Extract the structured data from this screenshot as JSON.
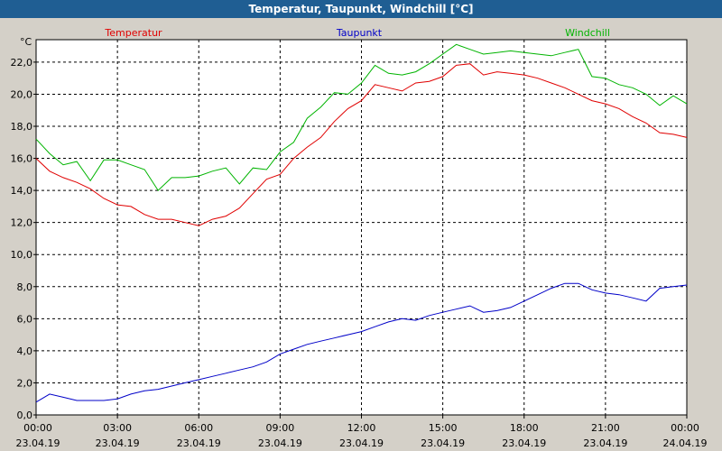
{
  "window": {
    "title": "Temperatur, Taupunkt, Windchill [°C]"
  },
  "chart_data": {
    "type": "line",
    "unit_label": "°C",
    "xlim": [
      "23.04.19 00:00",
      "24.04.19 00:00"
    ],
    "ylim": [
      0,
      23.4
    ],
    "grid": true,
    "legend_placement": "top",
    "x_ticks": [
      {
        "time": "00:00",
        "date": "23.04.19"
      },
      {
        "time": "03:00",
        "date": "23.04.19"
      },
      {
        "time": "06:00",
        "date": "23.04.19"
      },
      {
        "time": "09:00",
        "date": "23.04.19"
      },
      {
        "time": "12:00",
        "date": "23.04.19"
      },
      {
        "time": "15:00",
        "date": "23.04.19"
      },
      {
        "time": "18:00",
        "date": "23.04.19"
      },
      {
        "time": "21:00",
        "date": "23.04.19"
      },
      {
        "time": "00:00",
        "date": "24.04.19"
      }
    ],
    "y_ticks": [
      "0,0",
      "2,0",
      "4,0",
      "6,0",
      "8,0",
      "10,0",
      "12,0",
      "14,0",
      "16,0",
      "18,0",
      "20,0",
      "22,0"
    ],
    "series": [
      {
        "name": "Temperatur",
        "color": "#e00000",
        "points": [
          [
            "23.04.19 00:00",
            16.0
          ],
          [
            "23.04.19 00:30",
            15.2
          ],
          [
            "23.04.19 01:00",
            14.8
          ],
          [
            "23.04.19 01:30",
            14.5
          ],
          [
            "23.04.19 02:00",
            14.1
          ],
          [
            "23.04.19 02:30",
            13.5
          ],
          [
            "23.04.19 03:00",
            13.1
          ],
          [
            "23.04.19 03:30",
            13.0
          ],
          [
            "23.04.19 04:00",
            12.5
          ],
          [
            "23.04.19 04:30",
            12.2
          ],
          [
            "23.04.19 05:00",
            12.2
          ],
          [
            "23.04.19 05:30",
            12.0
          ],
          [
            "23.04.19 06:00",
            11.8
          ],
          [
            "23.04.19 06:30",
            12.2
          ],
          [
            "23.04.19 07:00",
            12.4
          ],
          [
            "23.04.19 07:30",
            12.9
          ],
          [
            "23.04.19 08:00",
            13.8
          ],
          [
            "23.04.19 08:30",
            14.7
          ],
          [
            "23.04.19 09:00",
            15.0
          ],
          [
            "23.04.19 09:30",
            16.0
          ],
          [
            "23.04.19 10:00",
            16.7
          ],
          [
            "23.04.19 10:30",
            17.3
          ],
          [
            "23.04.19 11:00",
            18.3
          ],
          [
            "23.04.19 11:30",
            19.1
          ],
          [
            "23.04.19 12:00",
            19.6
          ],
          [
            "23.04.19 12:30",
            20.6
          ],
          [
            "23.04.19 13:00",
            20.4
          ],
          [
            "23.04.19 13:30",
            20.2
          ],
          [
            "23.04.19 14:00",
            20.7
          ],
          [
            "23.04.19 14:30",
            20.8
          ],
          [
            "23.04.19 15:00",
            21.1
          ],
          [
            "23.04.19 15:30",
            21.8
          ],
          [
            "23.04.19 16:00",
            21.9
          ],
          [
            "23.04.19 16:30",
            21.2
          ],
          [
            "23.04.19 17:00",
            21.4
          ],
          [
            "23.04.19 17:30",
            21.3
          ],
          [
            "23.04.19 18:00",
            21.2
          ],
          [
            "23.04.19 18:30",
            21.0
          ],
          [
            "23.04.19 19:00",
            20.7
          ],
          [
            "23.04.19 19:30",
            20.4
          ],
          [
            "23.04.19 20:00",
            20.0
          ],
          [
            "23.04.19 20:30",
            19.6
          ],
          [
            "23.04.19 21:00",
            19.4
          ],
          [
            "23.04.19 21:30",
            19.1
          ],
          [
            "23.04.19 22:00",
            18.6
          ],
          [
            "23.04.19 22:30",
            18.2
          ],
          [
            "23.04.19 23:00",
            17.6
          ],
          [
            "23.04.19 23:30",
            17.5
          ],
          [
            "24.04.19 00:00",
            17.3
          ]
        ]
      },
      {
        "name": "Taupunkt",
        "color": "#0000c8",
        "points": [
          [
            "23.04.19 00:00",
            0.8
          ],
          [
            "23.04.19 00:30",
            1.3
          ],
          [
            "23.04.19 01:00",
            1.1
          ],
          [
            "23.04.19 01:30",
            0.9
          ],
          [
            "23.04.19 02:00",
            0.9
          ],
          [
            "23.04.19 02:30",
            0.9
          ],
          [
            "23.04.19 03:00",
            1.0
          ],
          [
            "23.04.19 03:30",
            1.3
          ],
          [
            "23.04.19 04:00",
            1.5
          ],
          [
            "23.04.19 04:30",
            1.6
          ],
          [
            "23.04.19 05:00",
            1.8
          ],
          [
            "23.04.19 05:30",
            2.0
          ],
          [
            "23.04.19 06:00",
            2.2
          ],
          [
            "23.04.19 06:30",
            2.4
          ],
          [
            "23.04.19 07:00",
            2.6
          ],
          [
            "23.04.19 07:30",
            2.8
          ],
          [
            "23.04.19 08:00",
            3.0
          ],
          [
            "23.04.19 08:30",
            3.3
          ],
          [
            "23.04.19 09:00",
            3.8
          ],
          [
            "23.04.19 09:30",
            4.1
          ],
          [
            "23.04.19 10:00",
            4.4
          ],
          [
            "23.04.19 10:30",
            4.6
          ],
          [
            "23.04.19 11:00",
            4.8
          ],
          [
            "23.04.19 11:30",
            5.0
          ],
          [
            "23.04.19 12:00",
            5.2
          ],
          [
            "23.04.19 12:30",
            5.5
          ],
          [
            "23.04.19 13:00",
            5.8
          ],
          [
            "23.04.19 13:30",
            6.0
          ],
          [
            "23.04.19 14:00",
            5.9
          ],
          [
            "23.04.19 14:30",
            6.2
          ],
          [
            "23.04.19 15:00",
            6.4
          ],
          [
            "23.04.19 15:30",
            6.6
          ],
          [
            "23.04.19 16:00",
            6.8
          ],
          [
            "23.04.19 16:30",
            6.4
          ],
          [
            "23.04.19 17:00",
            6.5
          ],
          [
            "23.04.19 17:30",
            6.7
          ],
          [
            "23.04.19 18:00",
            7.1
          ],
          [
            "23.04.19 18:30",
            7.5
          ],
          [
            "23.04.19 19:00",
            7.9
          ],
          [
            "23.04.19 19:30",
            8.2
          ],
          [
            "23.04.19 20:00",
            8.2
          ],
          [
            "23.04.19 20:30",
            7.8
          ],
          [
            "23.04.19 21:00",
            7.6
          ],
          [
            "23.04.19 21:30",
            7.5
          ],
          [
            "23.04.19 22:00",
            7.3
          ],
          [
            "23.04.19 22:30",
            7.1
          ],
          [
            "23.04.19 23:00",
            7.9
          ],
          [
            "23.04.19 23:30",
            8.0
          ],
          [
            "24.04.19 00:00",
            8.1
          ]
        ]
      },
      {
        "name": "Windchill",
        "color": "#00b400",
        "points": [
          [
            "23.04.19 00:00",
            17.2
          ],
          [
            "23.04.19 00:30",
            16.3
          ],
          [
            "23.04.19 01:00",
            15.6
          ],
          [
            "23.04.19 01:30",
            15.8
          ],
          [
            "23.04.19 02:00",
            14.6
          ],
          [
            "23.04.19 02:30",
            15.9
          ],
          [
            "23.04.19 03:00",
            15.9
          ],
          [
            "23.04.19 03:30",
            15.6
          ],
          [
            "23.04.19 04:00",
            15.3
          ],
          [
            "23.04.19 04:30",
            14.0
          ],
          [
            "23.04.19 05:00",
            14.8
          ],
          [
            "23.04.19 05:30",
            14.8
          ],
          [
            "23.04.19 06:00",
            14.9
          ],
          [
            "23.04.19 06:30",
            15.2
          ],
          [
            "23.04.19 07:00",
            15.4
          ],
          [
            "23.04.19 07:30",
            14.4
          ],
          [
            "23.04.19 08:00",
            15.4
          ],
          [
            "23.04.19 08:30",
            15.3
          ],
          [
            "23.04.19 09:00",
            16.4
          ],
          [
            "23.04.19 09:30",
            17.0
          ],
          [
            "23.04.19 10:00",
            18.5
          ],
          [
            "23.04.19 10:30",
            19.2
          ],
          [
            "23.04.19 11:00",
            20.1
          ],
          [
            "23.04.19 11:30",
            20.0
          ],
          [
            "23.04.19 12:00",
            20.7
          ],
          [
            "23.04.19 12:30",
            21.8
          ],
          [
            "23.04.19 13:00",
            21.3
          ],
          [
            "23.04.19 13:30",
            21.2
          ],
          [
            "23.04.19 14:00",
            21.4
          ],
          [
            "23.04.19 14:30",
            21.9
          ],
          [
            "23.04.19 15:00",
            22.5
          ],
          [
            "23.04.19 15:30",
            23.1
          ],
          [
            "23.04.19 16:00",
            22.8
          ],
          [
            "23.04.19 16:30",
            22.5
          ],
          [
            "23.04.19 17:00",
            22.6
          ],
          [
            "23.04.19 17:30",
            22.7
          ],
          [
            "23.04.19 18:00",
            22.6
          ],
          [
            "23.04.19 18:30",
            22.5
          ],
          [
            "23.04.19 19:00",
            22.4
          ],
          [
            "23.04.19 19:30",
            22.6
          ],
          [
            "23.04.19 20:00",
            22.8
          ],
          [
            "23.04.19 20:30",
            21.1
          ],
          [
            "23.04.19 21:00",
            21.0
          ],
          [
            "23.04.19 21:30",
            20.6
          ],
          [
            "23.04.19 22:00",
            20.4
          ],
          [
            "23.04.19 22:30",
            20.0
          ],
          [
            "23.04.19 23:00",
            19.3
          ],
          [
            "23.04.19 23:30",
            19.9
          ],
          [
            "24.04.19 00:00",
            19.4
          ]
        ]
      }
    ]
  }
}
